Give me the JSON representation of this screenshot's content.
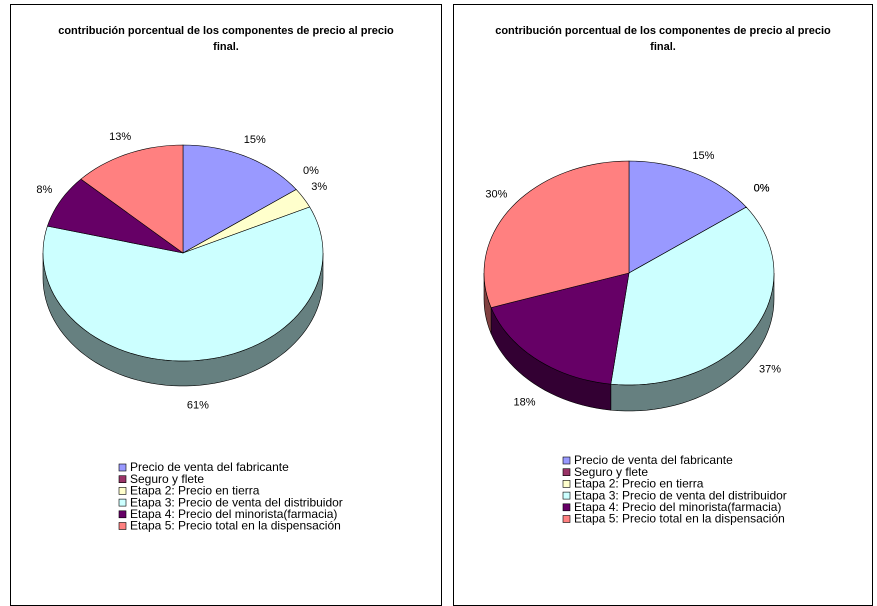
{
  "chart_data": [
    {
      "type": "pie3d",
      "title": "contribución porcentual de los componentes de precio al precio final.",
      "categories": [
        "Precio de venta del fabricante",
        "Seguro y flete",
        "Etapa 2: Precio en tierra",
        "Etapa 3: Precio de venta del distribuidor",
        "Etapa 4: Precio del minorista(farmacia)",
        "Etapa 5: Precio total en la dispensación"
      ],
      "values": [
        15,
        0,
        3,
        61,
        8,
        13
      ],
      "value_labels": [
        "15%",
        "0%",
        "3%",
        "61%",
        "8%",
        "13%"
      ],
      "colors": [
        "#9999ff",
        "#993366",
        "#ffffcc",
        "#ccffff",
        "#660066",
        "#ff8080"
      ]
    },
    {
      "type": "pie3d",
      "title": "contribución porcentual de los componentes de precio al precio final.",
      "categories": [
        "Precio de venta del fabricante",
        "Seguro y flete",
        "Etapa 2: Precio en tierra",
        "Etapa 3: Precio de venta del distribuidor",
        "Etapa 4: Precio del minorista(farmacia)",
        "Etapa 5: Precio total en la dispensación"
      ],
      "values": [
        15,
        0,
        0,
        37,
        18,
        30
      ],
      "value_labels": [
        "15%",
        "0%",
        "0%",
        "37%",
        "18%",
        "30%"
      ],
      "colors": [
        "#9999ff",
        "#993366",
        "#ffffcc",
        "#ccffff",
        "#660066",
        "#ff8080"
      ]
    }
  ]
}
